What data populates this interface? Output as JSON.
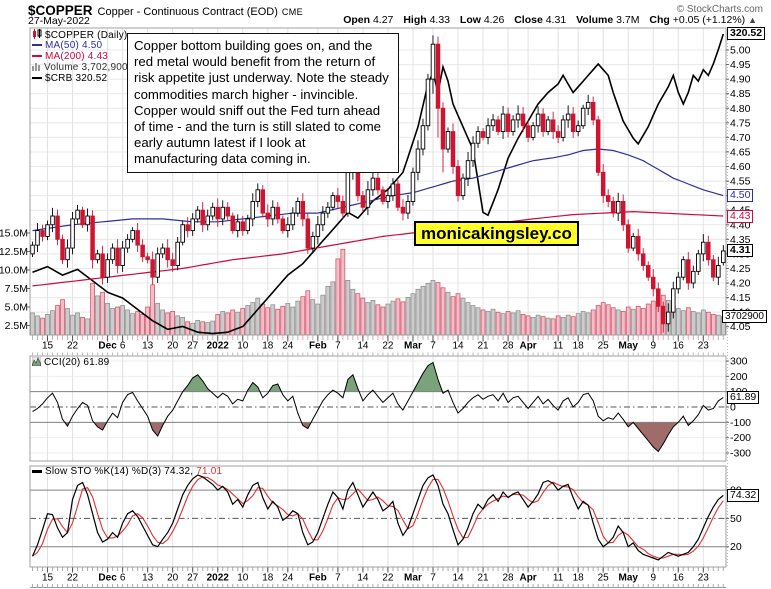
{
  "header": {
    "symbol": "$COPPER",
    "description": "Copper - Continuous Contract (EOD)",
    "exchange": "CME",
    "copyright": "© StockCharts.com",
    "date": "27-May-2022",
    "quote": {
      "open_label": "Open",
      "open": "4.27",
      "high_label": "High",
      "high": "4.33",
      "low_label": "Low",
      "low": "4.26",
      "close_label": "Close",
      "close": "4.31",
      "volume_label": "Volume",
      "volume": "3.7M",
      "chg_label": "Chg",
      "chg": "+0.05 (+1.12%)",
      "chg_arrow": "▲"
    }
  },
  "legend": {
    "series1": "$COPPER (Daily)",
    "ma50": "MA(50) 4.50",
    "ma200": "MA(200) 4.43",
    "volume": "Volume 3,702,900",
    "crb": "$CRB 320.52"
  },
  "cci_legend": "CCI(20) 61.89",
  "sto_legend": {
    "main": "Slow STO %K(14) %D(3) 74.32,",
    "d": "71.01"
  },
  "annotation": {
    "text": "Copper bottom building goes on, and the red metal would benefit from the return of risk appetite just underway. Note the steady commodities march higher - invincible. Copper would sniff out the Fed turn ahead of time - and the turn is still slated to come early autumn latest if I look at manufacturing data coming in."
  },
  "watermark": "monicakingsley.co",
  "boxes": {
    "crb": "320.52",
    "ma50": "4.50",
    "ma200": "4.43",
    "close": "4.31",
    "volume": "3702900",
    "cci": "61.89",
    "sto": "74.32"
  },
  "colors": {
    "up_candle": "#000000",
    "up_fill": "#ffffff",
    "down_candle": "#cf1431",
    "vol_up_fill": "#cccccc",
    "vol_up_stroke": "#888888",
    "vol_down_fill": "#f4bcc6",
    "vol_down_stroke": "#cc4862",
    "ma50": "#2e2e9e",
    "ma200": "#cc0a3c",
    "crb": "#000000",
    "cci_line": "#000000",
    "cci_pos_fill": "#7ba37b",
    "cci_neg_fill": "#a06b6b",
    "sto_k": "#000000",
    "sto_d": "#e03030",
    "watermark_bg": "#ffff2e",
    "grid": "#e8e8e8"
  },
  "chart_data": {
    "type": "candlestick",
    "title": "$COPPER Copper - Continuous Contract (EOD) CME",
    "price_axis": [
      5.0,
      4.95,
      4.9,
      4.85,
      4.8,
      4.75,
      4.7,
      4.65,
      4.6,
      4.55,
      4.5,
      4.45,
      4.4,
      4.35,
      4.3,
      4.25,
      4.2,
      4.15,
      4.1,
      4.05
    ],
    "volume_axis": [
      15.0,
      12.5,
      10.0,
      7.5,
      5.0,
      2.5
    ],
    "cci_axis": [
      300,
      200,
      100,
      0,
      -100,
      -200,
      -300
    ],
    "sto_axis": [
      80,
      50,
      20
    ],
    "date_ticks": [
      [
        3,
        "15",
        0
      ],
      [
        8,
        "22",
        0
      ],
      [
        15,
        "Dec",
        1
      ],
      [
        18,
        "6",
        0
      ],
      [
        23,
        "13",
        0
      ],
      [
        28,
        "20",
        0
      ],
      [
        32,
        "27",
        0
      ],
      [
        37,
        "2022",
        1
      ],
      [
        42,
        "10",
        0
      ],
      [
        47,
        "18",
        0
      ],
      [
        51,
        "24",
        0
      ],
      [
        57,
        "Feb",
        1
      ],
      [
        61,
        "7",
        0
      ],
      [
        66,
        "14",
        0
      ],
      [
        71,
        "22",
        0
      ],
      [
        76,
        "Mar",
        1
      ],
      [
        80,
        "7",
        0
      ],
      [
        85,
        "14",
        0
      ],
      [
        90,
        "21",
        0
      ],
      [
        95,
        "28",
        0
      ],
      [
        99,
        "Apr",
        1
      ],
      [
        105,
        "11",
        0
      ],
      [
        109,
        "18",
        0
      ],
      [
        114,
        "25",
        0
      ],
      [
        119,
        "May",
        1
      ],
      [
        124,
        "9",
        0
      ],
      [
        129,
        "16",
        0
      ],
      [
        134,
        "23",
        0
      ]
    ],
    "candles": {
      "first_open": 4.3,
      "close": [
        4.33,
        4.38,
        4.36,
        4.4,
        4.43,
        4.35,
        4.28,
        4.32,
        4.42,
        4.45,
        4.4,
        4.43,
        4.28,
        4.3,
        4.22,
        4.28,
        4.32,
        4.26,
        4.32,
        4.35,
        4.38,
        4.33,
        4.29,
        4.28,
        4.22,
        4.3,
        4.32,
        4.28,
        4.26,
        4.34,
        4.4,
        4.38,
        4.42,
        4.45,
        4.4,
        4.43,
        4.46,
        4.42,
        4.46,
        4.43,
        4.38,
        4.41,
        4.38,
        4.42,
        4.48,
        4.52,
        4.44,
        4.42,
        4.46,
        4.42,
        4.38,
        4.4,
        4.44,
        4.48,
        4.42,
        4.32,
        4.36,
        4.4,
        4.44,
        4.46,
        4.5,
        4.48,
        4.44,
        4.58,
        4.62,
        4.5,
        4.46,
        4.52,
        4.56,
        4.52,
        4.48,
        4.5,
        4.54,
        4.46,
        4.44,
        4.48,
        4.58,
        4.66,
        4.74,
        4.9,
        5.02,
        4.8,
        4.66,
        4.72,
        4.6,
        4.5,
        4.56,
        4.62,
        4.68,
        4.72,
        4.7,
        4.74,
        4.76,
        4.72,
        4.78,
        4.72,
        4.76,
        4.78,
        4.74,
        4.7,
        4.74,
        4.78,
        4.72,
        4.76,
        4.72,
        4.7,
        4.76,
        4.78,
        4.72,
        4.74,
        4.8,
        4.82,
        4.76,
        4.58,
        4.5,
        4.48,
        4.44,
        4.48,
        4.4,
        4.32,
        4.36,
        4.3,
        4.26,
        4.22,
        4.18,
        4.12,
        4.06,
        4.1,
        4.18,
        4.22,
        4.28,
        4.2,
        4.24,
        4.3,
        4.34,
        4.28,
        4.22,
        4.26,
        4.31
      ],
      "overrides": {
        "12": {
          "l": 4.25
        },
        "80": {
          "h": 5.05,
          "l": 4.85
        },
        "81": {
          "l": 4.7
        },
        "82": {
          "l": 4.58
        },
        "126": {
          "l": 4.03
        },
        "138": {
          "o": 4.27,
          "h": 4.33,
          "l": 4.26
        }
      }
    },
    "volume_m": [
      4.2,
      3.8,
      3.5,
      4.0,
      4.5,
      5.2,
      6.0,
      4.8,
      3.9,
      4.2,
      3.6,
      3.4,
      8.2,
      6.5,
      7.0,
      5.5,
      4.8,
      5.0,
      5.2,
      4.6,
      4.1,
      4.4,
      4.0,
      5.0,
      8.0,
      5.5,
      4.6,
      4.2,
      4.4,
      3.8,
      3.6,
      3.0,
      2.8,
      3.2,
      3.0,
      2.9,
      3.1,
      4.0,
      4.4,
      4.2,
      4.6,
      4.3,
      4.8,
      5.2,
      5.6,
      6.2,
      5.4,
      4.9,
      5.3,
      4.7,
      5.1,
      5.5,
      5.0,
      5.8,
      6.4,
      7.2,
      6.0,
      5.4,
      6.6,
      7.8,
      8.4,
      11.5,
      12.8,
      8.6,
      7.4,
      6.8,
      6.2,
      5.6,
      5.9,
      5.3,
      5.0,
      5.4,
      5.8,
      6.1,
      5.7,
      6.3,
      6.8,
      7.4,
      7.8,
      8.2,
      8.6,
      8.3,
      7.6,
      7.0,
      6.4,
      6.8,
      6.2,
      5.6,
      5.2,
      4.9,
      4.6,
      4.4,
      4.7,
      4.3,
      4.1,
      4.4,
      4.2,
      4.5,
      4.0,
      3.8,
      3.6,
      3.9,
      3.7,
      3.5,
      3.4,
      3.8,
      3.6,
      3.9,
      3.7,
      4.1,
      4.4,
      4.2,
      4.6,
      5.2,
      5.6,
      5.3,
      4.9,
      4.6,
      4.4,
      5.0,
      4.7,
      5.1,
      4.8,
      5.4,
      5.8,
      6.2,
      6.6,
      5.9,
      5.2,
      4.8,
      4.5,
      4.9,
      4.4,
      4.2,
      4.6,
      4.3,
      4.0,
      3.9,
      3.7
    ],
    "ma50": [
      [
        0,
        4.38
      ],
      [
        8,
        4.4
      ],
      [
        14,
        4.41
      ],
      [
        20,
        4.42
      ],
      [
        26,
        4.42
      ],
      [
        32,
        4.41
      ],
      [
        37,
        4.41
      ],
      [
        42,
        4.42
      ],
      [
        47,
        4.43
      ],
      [
        52,
        4.44
      ],
      [
        57,
        4.44
      ],
      [
        62,
        4.46
      ],
      [
        67,
        4.48
      ],
      [
        72,
        4.5
      ],
      [
        76,
        4.51
      ],
      [
        80,
        4.53
      ],
      [
        84,
        4.55
      ],
      [
        88,
        4.56
      ],
      [
        92,
        4.58
      ],
      [
        96,
        4.6
      ],
      [
        100,
        4.62
      ],
      [
        104,
        4.63
      ],
      [
        107,
        4.64
      ],
      [
        110,
        4.655
      ],
      [
        113,
        4.66
      ],
      [
        116,
        4.655
      ],
      [
        119,
        4.64
      ],
      [
        122,
        4.62
      ],
      [
        125,
        4.59
      ],
      [
        128,
        4.56
      ],
      [
        131,
        4.54
      ],
      [
        134,
        4.52
      ],
      [
        138,
        4.5
      ]
    ],
    "ma200": [
      [
        0,
        4.19
      ],
      [
        10,
        4.21
      ],
      [
        20,
        4.23
      ],
      [
        30,
        4.25
      ],
      [
        40,
        4.28
      ],
      [
        50,
        4.3
      ],
      [
        60,
        4.33
      ],
      [
        70,
        4.36
      ],
      [
        80,
        4.38
      ],
      [
        90,
        4.4
      ],
      [
        100,
        4.42
      ],
      [
        108,
        4.435
      ],
      [
        114,
        4.44
      ],
      [
        120,
        4.445
      ],
      [
        126,
        4.44
      ],
      [
        132,
        4.435
      ],
      [
        138,
        4.43
      ]
    ],
    "crb": [
      [
        0,
        237
      ],
      [
        3,
        239
      ],
      [
        6,
        236
      ],
      [
        9,
        238
      ],
      [
        12,
        234
      ],
      [
        15,
        230
      ],
      [
        18,
        228
      ],
      [
        21,
        224
      ],
      [
        24,
        220
      ],
      [
        27,
        217
      ],
      [
        30,
        218
      ],
      [
        33,
        216
      ],
      [
        36,
        215.5
      ],
      [
        39,
        216
      ],
      [
        42,
        218
      ],
      [
        45,
        224
      ],
      [
        48,
        230
      ],
      [
        51,
        236
      ],
      [
        54,
        240
      ],
      [
        57,
        246
      ],
      [
        60,
        252
      ],
      [
        63,
        258
      ],
      [
        65,
        256
      ],
      [
        68,
        262
      ],
      [
        71,
        266
      ],
      [
        74,
        272
      ],
      [
        77,
        288
      ],
      [
        79,
        303
      ],
      [
        80,
        307
      ],
      [
        81,
        300
      ],
      [
        82,
        309
      ],
      [
        83,
        304
      ],
      [
        84,
        296
      ],
      [
        86,
        288
      ],
      [
        88,
        280
      ],
      [
        90,
        258
      ],
      [
        91,
        257
      ],
      [
        93,
        266
      ],
      [
        95,
        277
      ],
      [
        97,
        284
      ],
      [
        99,
        290
      ],
      [
        101,
        296
      ],
      [
        103,
        300
      ],
      [
        105,
        303
      ],
      [
        106,
        306
      ],
      [
        108,
        300
      ],
      [
        110,
        304
      ],
      [
        112,
        308
      ],
      [
        113,
        310
      ],
      [
        115,
        306
      ],
      [
        116,
        300
      ],
      [
        118,
        290
      ],
      [
        120,
        284
      ],
      [
        121,
        282
      ],
      [
        123,
        288
      ],
      [
        125,
        296
      ],
      [
        127,
        302
      ],
      [
        128,
        306
      ],
      [
        129,
        300
      ],
      [
        130,
        296
      ],
      [
        131,
        300
      ],
      [
        132,
        306
      ],
      [
        133,
        304
      ],
      [
        134,
        308
      ],
      [
        135,
        306
      ],
      [
        136,
        310
      ],
      [
        137,
        315
      ],
      [
        138,
        320.52
      ]
    ],
    "cci": [
      -30,
      -10,
      20,
      60,
      90,
      30,
      -80,
      -125,
      -60,
      -10,
      30,
      10,
      -90,
      -130,
      -150,
      -90,
      -40,
      -70,
      30,
      80,
      95,
      40,
      -10,
      -60,
      -150,
      -190,
      -120,
      -60,
      -20,
      40,
      100,
      140,
      190,
      210,
      170,
      120,
      90,
      60,
      90,
      70,
      20,
      50,
      40,
      110,
      160,
      130,
      60,
      90,
      140,
      150,
      80,
      40,
      70,
      -40,
      -120,
      -140,
      -80,
      -20,
      40,
      80,
      110,
      90,
      60,
      180,
      210,
      120,
      40,
      80,
      110,
      70,
      30,
      60,
      90,
      20,
      -20,
      40,
      100,
      160,
      220,
      270,
      290,
      180,
      90,
      110,
      30,
      -40,
      -10,
      30,
      60,
      80,
      50,
      70,
      80,
      40,
      90,
      30,
      60,
      70,
      30,
      -10,
      30,
      70,
      20,
      50,
      10,
      -20,
      40,
      60,
      0,
      30,
      80,
      90,
      40,
      -60,
      -90,
      -70,
      -80,
      -40,
      -80,
      -130,
      -100,
      -140,
      -180,
      -220,
      -260,
      -290,
      -240,
      -180,
      -130,
      -100,
      -60,
      -120,
      -90,
      -50,
      10,
      -20,
      -10,
      40,
      61.89
    ],
    "sto_k": [
      10,
      22,
      38,
      55,
      54,
      40,
      30,
      35,
      70,
      85,
      88,
      75,
      55,
      35,
      25,
      28,
      35,
      30,
      45,
      55,
      58,
      52,
      42,
      32,
      22,
      20,
      28,
      35,
      45,
      60,
      75,
      85,
      92,
      96,
      94,
      90,
      86,
      80,
      84,
      78,
      65,
      70,
      62,
      75,
      85,
      88,
      72,
      60,
      68,
      62,
      48,
      52,
      58,
      55,
      35,
      22,
      25,
      35,
      50,
      65,
      78,
      72,
      60,
      80,
      88,
      75,
      62,
      70,
      78,
      70,
      58,
      62,
      68,
      45,
      32,
      40,
      55,
      70,
      85,
      93,
      96,
      85,
      65,
      55,
      38,
      22,
      28,
      40,
      55,
      65,
      60,
      70,
      75,
      68,
      78,
      72,
      76,
      78,
      70,
      62,
      68,
      76,
      88,
      90,
      87,
      80,
      84,
      86,
      72,
      60,
      68,
      64,
      45,
      28,
      20,
      24,
      30,
      42,
      35,
      20,
      24,
      16,
      12,
      10,
      8,
      6,
      10,
      14,
      12,
      10,
      12,
      14,
      20,
      28,
      40,
      52,
      62,
      70,
      74.32
    ],
    "cci_current": 61.89,
    "sto_k_current": 74.32,
    "sto_d_current": 71.01,
    "ma50_current": 4.5,
    "ma200_current": 4.43,
    "crb_current": 320.52,
    "volume_current": 3702900
  }
}
